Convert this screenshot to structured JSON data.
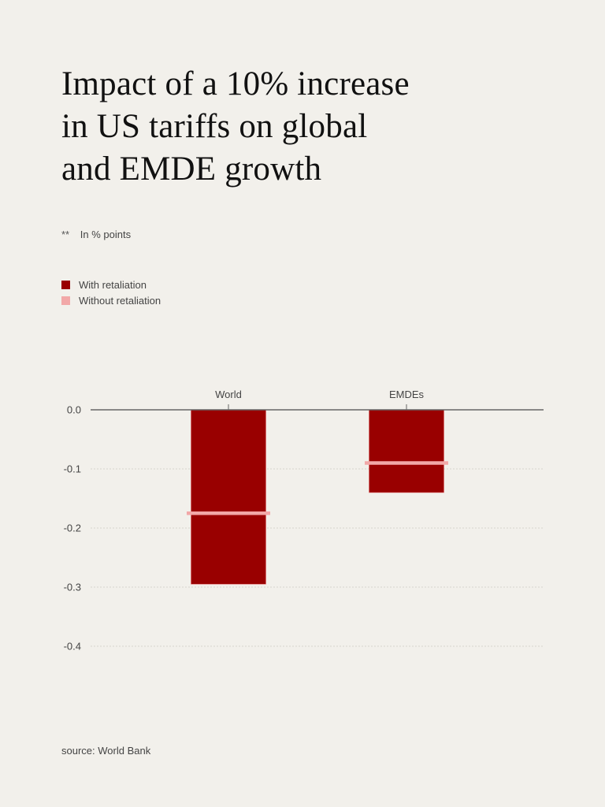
{
  "title": "Impact of a 10% increase in US tariffs on global and EMDE growth",
  "title_lines": [
    "Impact of a 10% increase",
    "in US tariffs on global",
    "and EMDE growth"
  ],
  "subtitle": {
    "marker": "**",
    "text": "In % points"
  },
  "source": "source: World Bank",
  "colors": {
    "background": "#f2f0eb",
    "with_retaliation": "#990000",
    "without_retaliation": "#f2a8a8",
    "axis": "#666666",
    "grid": "#d6d3cc"
  },
  "chart_data": {
    "type": "bar",
    "title": "Impact of a 10% increase in US tariffs on global and EMDE growth",
    "xlabel": "",
    "ylabel": "In % points",
    "categories": [
      "World",
      "EMDEs"
    ],
    "series": [
      {
        "name": "With retaliation",
        "style": "bar",
        "color": "#990000",
        "values": [
          -0.295,
          -0.14
        ]
      },
      {
        "name": "Without retaliation",
        "style": "marker-line",
        "color": "#f2a8a8",
        "values": [
          -0.175,
          -0.09
        ]
      }
    ],
    "ylim": [
      -0.4,
      0.0
    ],
    "yticks": [
      0.0,
      -0.1,
      -0.2,
      -0.3,
      -0.4
    ],
    "ytick_labels": [
      "0.0",
      "-0.1",
      "-0.2",
      "-0.3",
      "-0.4"
    ],
    "grid": true,
    "legend_position": "top-left",
    "x_axis_position": "top"
  }
}
